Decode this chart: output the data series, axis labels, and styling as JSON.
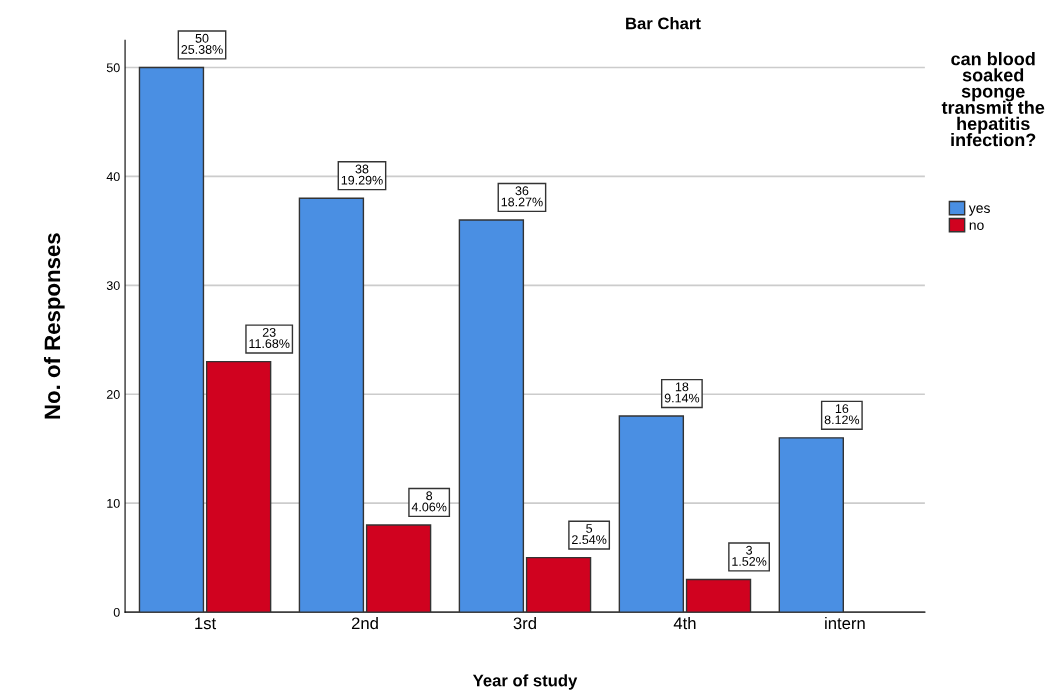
{
  "chart_data": {
    "type": "bar",
    "title": "Bar Chart",
    "xlabel": "Year of study",
    "ylabel": "No. of Responses",
    "legend_title": "can blood soaked sponge transmit the hepatitis infection?",
    "categories": [
      "1st",
      "2nd",
      "3rd",
      "4th",
      "intern"
    ],
    "series": [
      {
        "name": "yes",
        "color": "#4a8fe3",
        "values": [
          50,
          38,
          36,
          18,
          16
        ],
        "value_labels": [
          "50\n25.38%",
          "38\n19.29%",
          "36\n18.27%",
          "18\n9.14%",
          "16\n8.12%"
        ]
      },
      {
        "name": "no",
        "color": "#d0021f",
        "values": [
          23,
          8,
          5,
          3,
          null
        ],
        "value_labels": [
          "23\n11.68%",
          "8\n4.06%",
          "5\n2.54%",
          "3\n1.52%",
          null
        ]
      }
    ],
    "ylim": [
      0,
      52.5
    ],
    "yticks": [
      0,
      10,
      20,
      30,
      40,
      50
    ],
    "grid": "y",
    "legend": "top right"
  }
}
